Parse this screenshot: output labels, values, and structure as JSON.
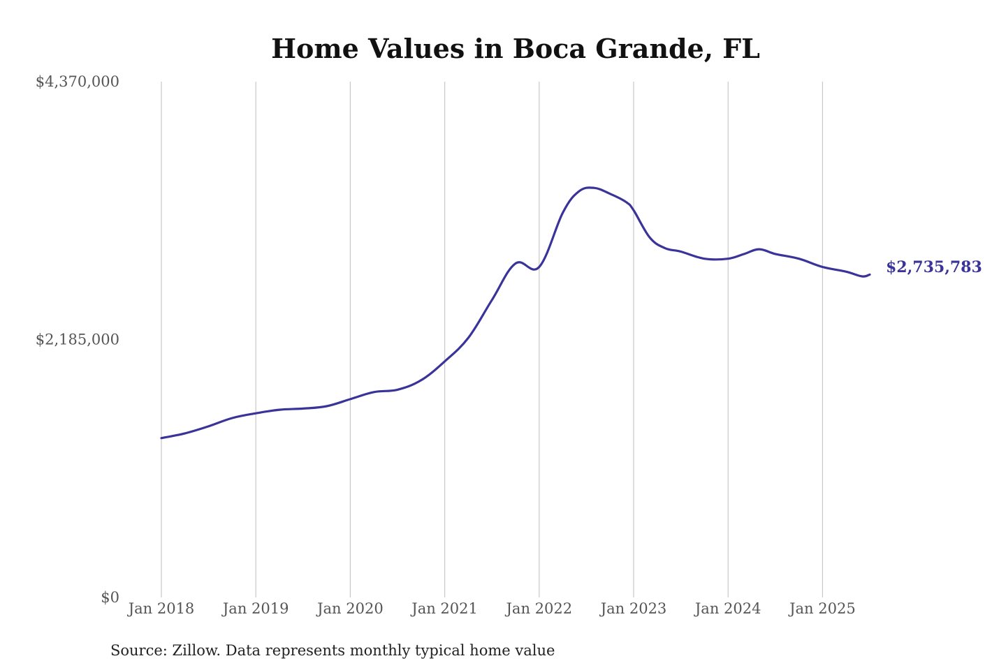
{
  "chart_data": {
    "type": "line",
    "title": "Home Values in Boca Grande, FL",
    "source": "Source: Zillow. Data represents monthly typical home value",
    "xlabel": "",
    "ylabel": "",
    "ylim": [
      0,
      4370000
    ],
    "y_ticks": [
      {
        "value": 0,
        "label": "$0"
      },
      {
        "value": 2185000,
        "label": "$2,185,000"
      },
      {
        "value": 4370000,
        "label": "$4,370,000"
      }
    ],
    "x_ticks": [
      {
        "value": 2018.0,
        "label": "Jan 2018"
      },
      {
        "value": 2019.0,
        "label": "Jan 2019"
      },
      {
        "value": 2020.0,
        "label": "Jan 2020"
      },
      {
        "value": 2021.0,
        "label": "Jan 2021"
      },
      {
        "value": 2022.0,
        "label": "Jan 2022"
      },
      {
        "value": 2023.0,
        "label": "Jan 2023"
      },
      {
        "value": 2024.0,
        "label": "Jan 2024"
      },
      {
        "value": 2025.0,
        "label": "Jan 2025"
      }
    ],
    "xlim": [
      2018.0,
      2025.5
    ],
    "grid": "vertical",
    "line_color": "#3a3399",
    "end_label": "$2,735,783",
    "series": [
      {
        "x": [
          2018.0,
          2018.25,
          2018.5,
          2018.75,
          2019.0,
          2019.25,
          2019.5,
          2019.75,
          2020.0,
          2020.25,
          2020.5,
          2020.75,
          2021.0,
          2021.25,
          2021.5,
          2021.75,
          2022.0,
          2022.25,
          2022.42,
          2022.58,
          2022.75,
          2022.92,
          2023.0,
          2023.17,
          2023.33,
          2023.5,
          2023.75,
          2024.0,
          2024.17,
          2024.33,
          2024.5,
          2024.75,
          2025.0,
          2025.25,
          2025.42,
          2025.5
        ],
        "y": [
          1350000,
          1390000,
          1450000,
          1520000,
          1560000,
          1590000,
          1600000,
          1620000,
          1680000,
          1740000,
          1760000,
          1840000,
          2000000,
          2200000,
          2520000,
          2830000,
          2800000,
          3260000,
          3440000,
          3470000,
          3420000,
          3350000,
          3280000,
          3050000,
          2960000,
          2930000,
          2870000,
          2870000,
          2910000,
          2950000,
          2910000,
          2870000,
          2800000,
          2760000,
          2720000,
          2735783
        ]
      }
    ]
  }
}
